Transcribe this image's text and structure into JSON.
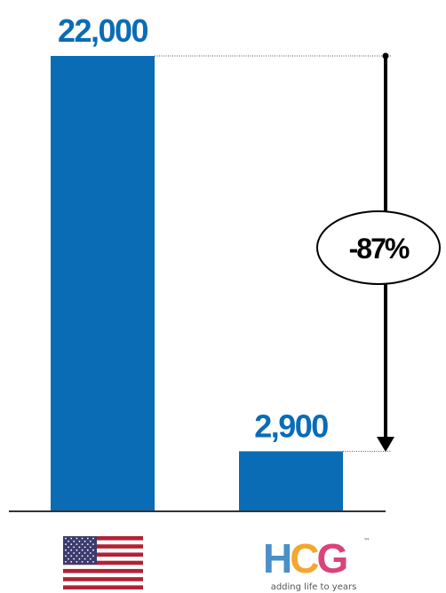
{
  "chart_data": {
    "type": "bar",
    "categories": [
      "United States",
      "HCG"
    ],
    "values": [
      22000,
      2900
    ],
    "value_labels": [
      "22,000",
      "2,900"
    ],
    "change_label": "-87%",
    "bar_color": "#0a6cb5",
    "ylim": [
      0,
      22000
    ],
    "grid": false,
    "title": "",
    "xlabel": "",
    "ylabel": ""
  },
  "logos": {
    "hcg_text": "HCG",
    "hcg_tm": "™",
    "hcg_tagline": "adding life to years",
    "hcg_colors": {
      "h": "#4a8fc9",
      "c": "#f2a72e",
      "g": "#d9447a"
    }
  },
  "icons": {
    "category_1": "us-flag-icon",
    "category_2": "hcg-logo"
  }
}
